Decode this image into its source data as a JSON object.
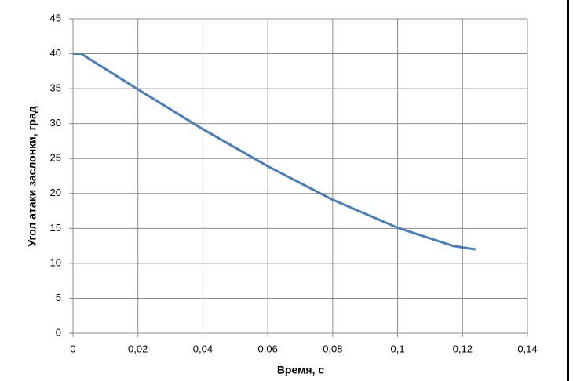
{
  "chart_data": {
    "type": "line",
    "x_label": "Время, с",
    "y_label": "Угол атаки заслонки, град",
    "x": [
      0,
      0.0025,
      0.02,
      0.04,
      0.06,
      0.08,
      0.1,
      0.117,
      0.124
    ],
    "series": [
      {
        "color": "#4a7ebb",
        "values": [
          40,
          40,
          34.9,
          29.2,
          23.9,
          19.1,
          15.1,
          12.5,
          12
        ]
      }
    ],
    "xlim": [
      0,
      0.14
    ],
    "xticks": [
      0,
      {
        "value": 0.02,
        "label": "0,02"
      },
      {
        "value": 0.04,
        "label": "0,04"
      },
      {
        "value": 0.06,
        "label": "0,06"
      },
      {
        "value": 0.08,
        "label": "0,08"
      },
      {
        "value": 0.1,
        "label": "0,1"
      },
      {
        "value": 0.12,
        "label": "0,12"
      },
      {
        "value": 0.14,
        "label": "0,14"
      }
    ],
    "ylim": [
      0,
      45
    ],
    "yticks": [
      0,
      5,
      10,
      15,
      20,
      25,
      30,
      35,
      40,
      45
    ],
    "grid": true
  }
}
